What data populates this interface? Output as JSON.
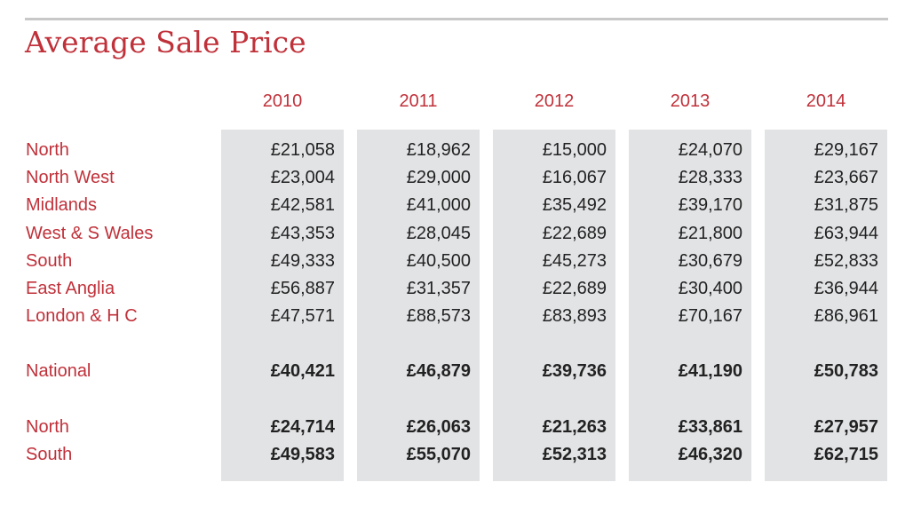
{
  "chart_data": {
    "type": "table",
    "title": "Average Sale Price",
    "columns": [
      "2010",
      "2011",
      "2012",
      "2013",
      "2014"
    ],
    "rows": [
      {
        "label": "North",
        "values": [
          "£21,058",
          "£18,962",
          "£15,000",
          "£24,070",
          "£29,167"
        ],
        "bold": false
      },
      {
        "label": "North West",
        "values": [
          "£23,004",
          "£29,000",
          "£16,067",
          "£28,333",
          "£23,667"
        ],
        "bold": false
      },
      {
        "label": "Midlands",
        "values": [
          "£42,581",
          "£41,000",
          "£35,492",
          "£39,170",
          "£31,875"
        ],
        "bold": false
      },
      {
        "label": "West & S Wales",
        "values": [
          "£43,353",
          "£28,045",
          "£22,689",
          "£21,800",
          "£63,944"
        ],
        "bold": false
      },
      {
        "label": "South",
        "values": [
          "£49,333",
          "£40,500",
          "£45,273",
          "£30,679",
          "£52,833"
        ],
        "bold": false
      },
      {
        "label": "East Anglia",
        "values": [
          "£56,887",
          "£31,357",
          "£22,689",
          "£30,400",
          "£36,944"
        ],
        "bold": false
      },
      {
        "label": "London & H C",
        "values": [
          "£47,571",
          "£88,573",
          "£83,893",
          "£70,167",
          "£86,961"
        ],
        "bold": false
      },
      {
        "label": "National",
        "values": [
          "£40,421",
          "£46,879",
          "£39,736",
          "£41,190",
          "£50,783"
        ],
        "bold": true
      },
      {
        "label": "North",
        "values": [
          "£24,714",
          "£26,063",
          "£21,263",
          "£33,861",
          "£27,957"
        ],
        "bold": true
      },
      {
        "label": "South",
        "values": [
          "£49,583",
          "£55,070",
          "£52,313",
          "£46,320",
          "£62,715"
        ],
        "bold": true
      }
    ]
  },
  "colors": {
    "accent": "#c0313a",
    "panel": "#e2e3e5",
    "rule": "#c8c8c8",
    "value_text": "#222222"
  }
}
